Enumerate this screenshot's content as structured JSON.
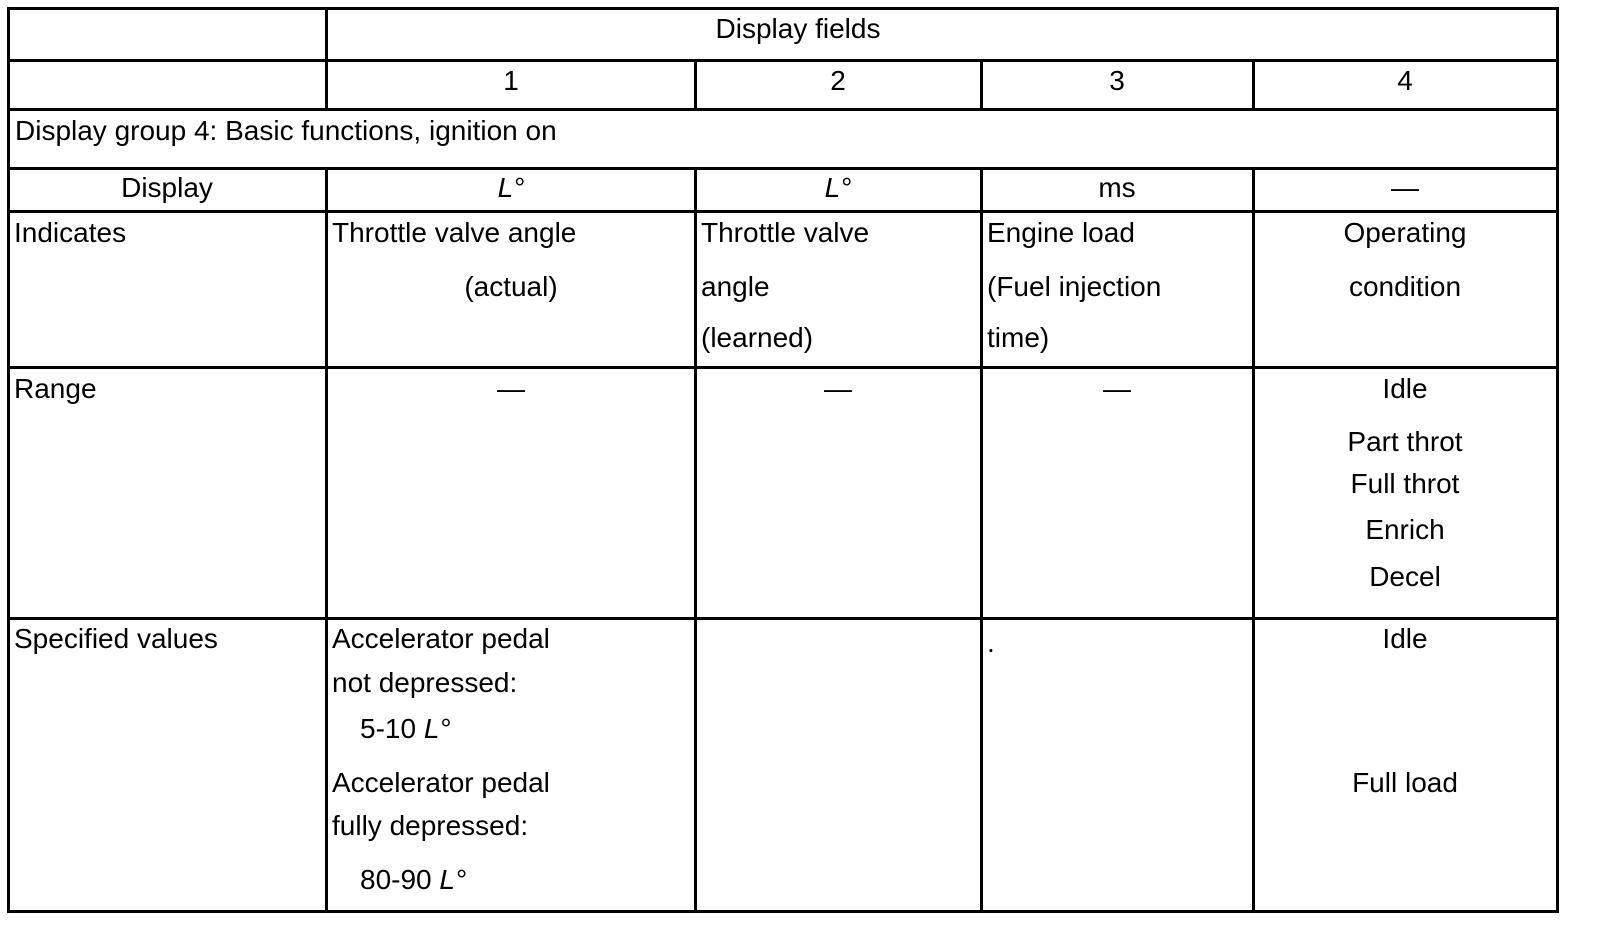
{
  "header": {
    "title": "Display fields",
    "columns": [
      "1",
      "2",
      "3",
      "4"
    ]
  },
  "group_title": "Display group 4: Basic functions, ignition on",
  "rows": {
    "display": {
      "label": "Display",
      "values": [
        "L°",
        "L°",
        "ms",
        "—"
      ]
    },
    "indicates": {
      "label": "Indicates",
      "col1": [
        "Throttle valve angle",
        "(actual)"
      ],
      "col2": [
        "Throttle valve",
        "angle",
        "(learned)"
      ],
      "col3": [
        "Engine load",
        "(Fuel injection",
        "time)"
      ],
      "col4": [
        "Operating",
        "condition"
      ]
    },
    "range": {
      "label": "Range",
      "values": [
        "—",
        "—",
        "—"
      ],
      "col4": [
        "Idle",
        "Part throt",
        "Full throt",
        "Enrich",
        "Decel"
      ]
    },
    "specified": {
      "label": "Specified values",
      "col1": [
        "Accelerator pedal",
        "not depressed:",
        "5-10 ",
        "L°",
        "Accelerator pedal",
        "fully depressed:",
        "80-90 ",
        "L°"
      ],
      "col3": ".",
      "col4": [
        "Idle",
        "Full load"
      ]
    }
  }
}
